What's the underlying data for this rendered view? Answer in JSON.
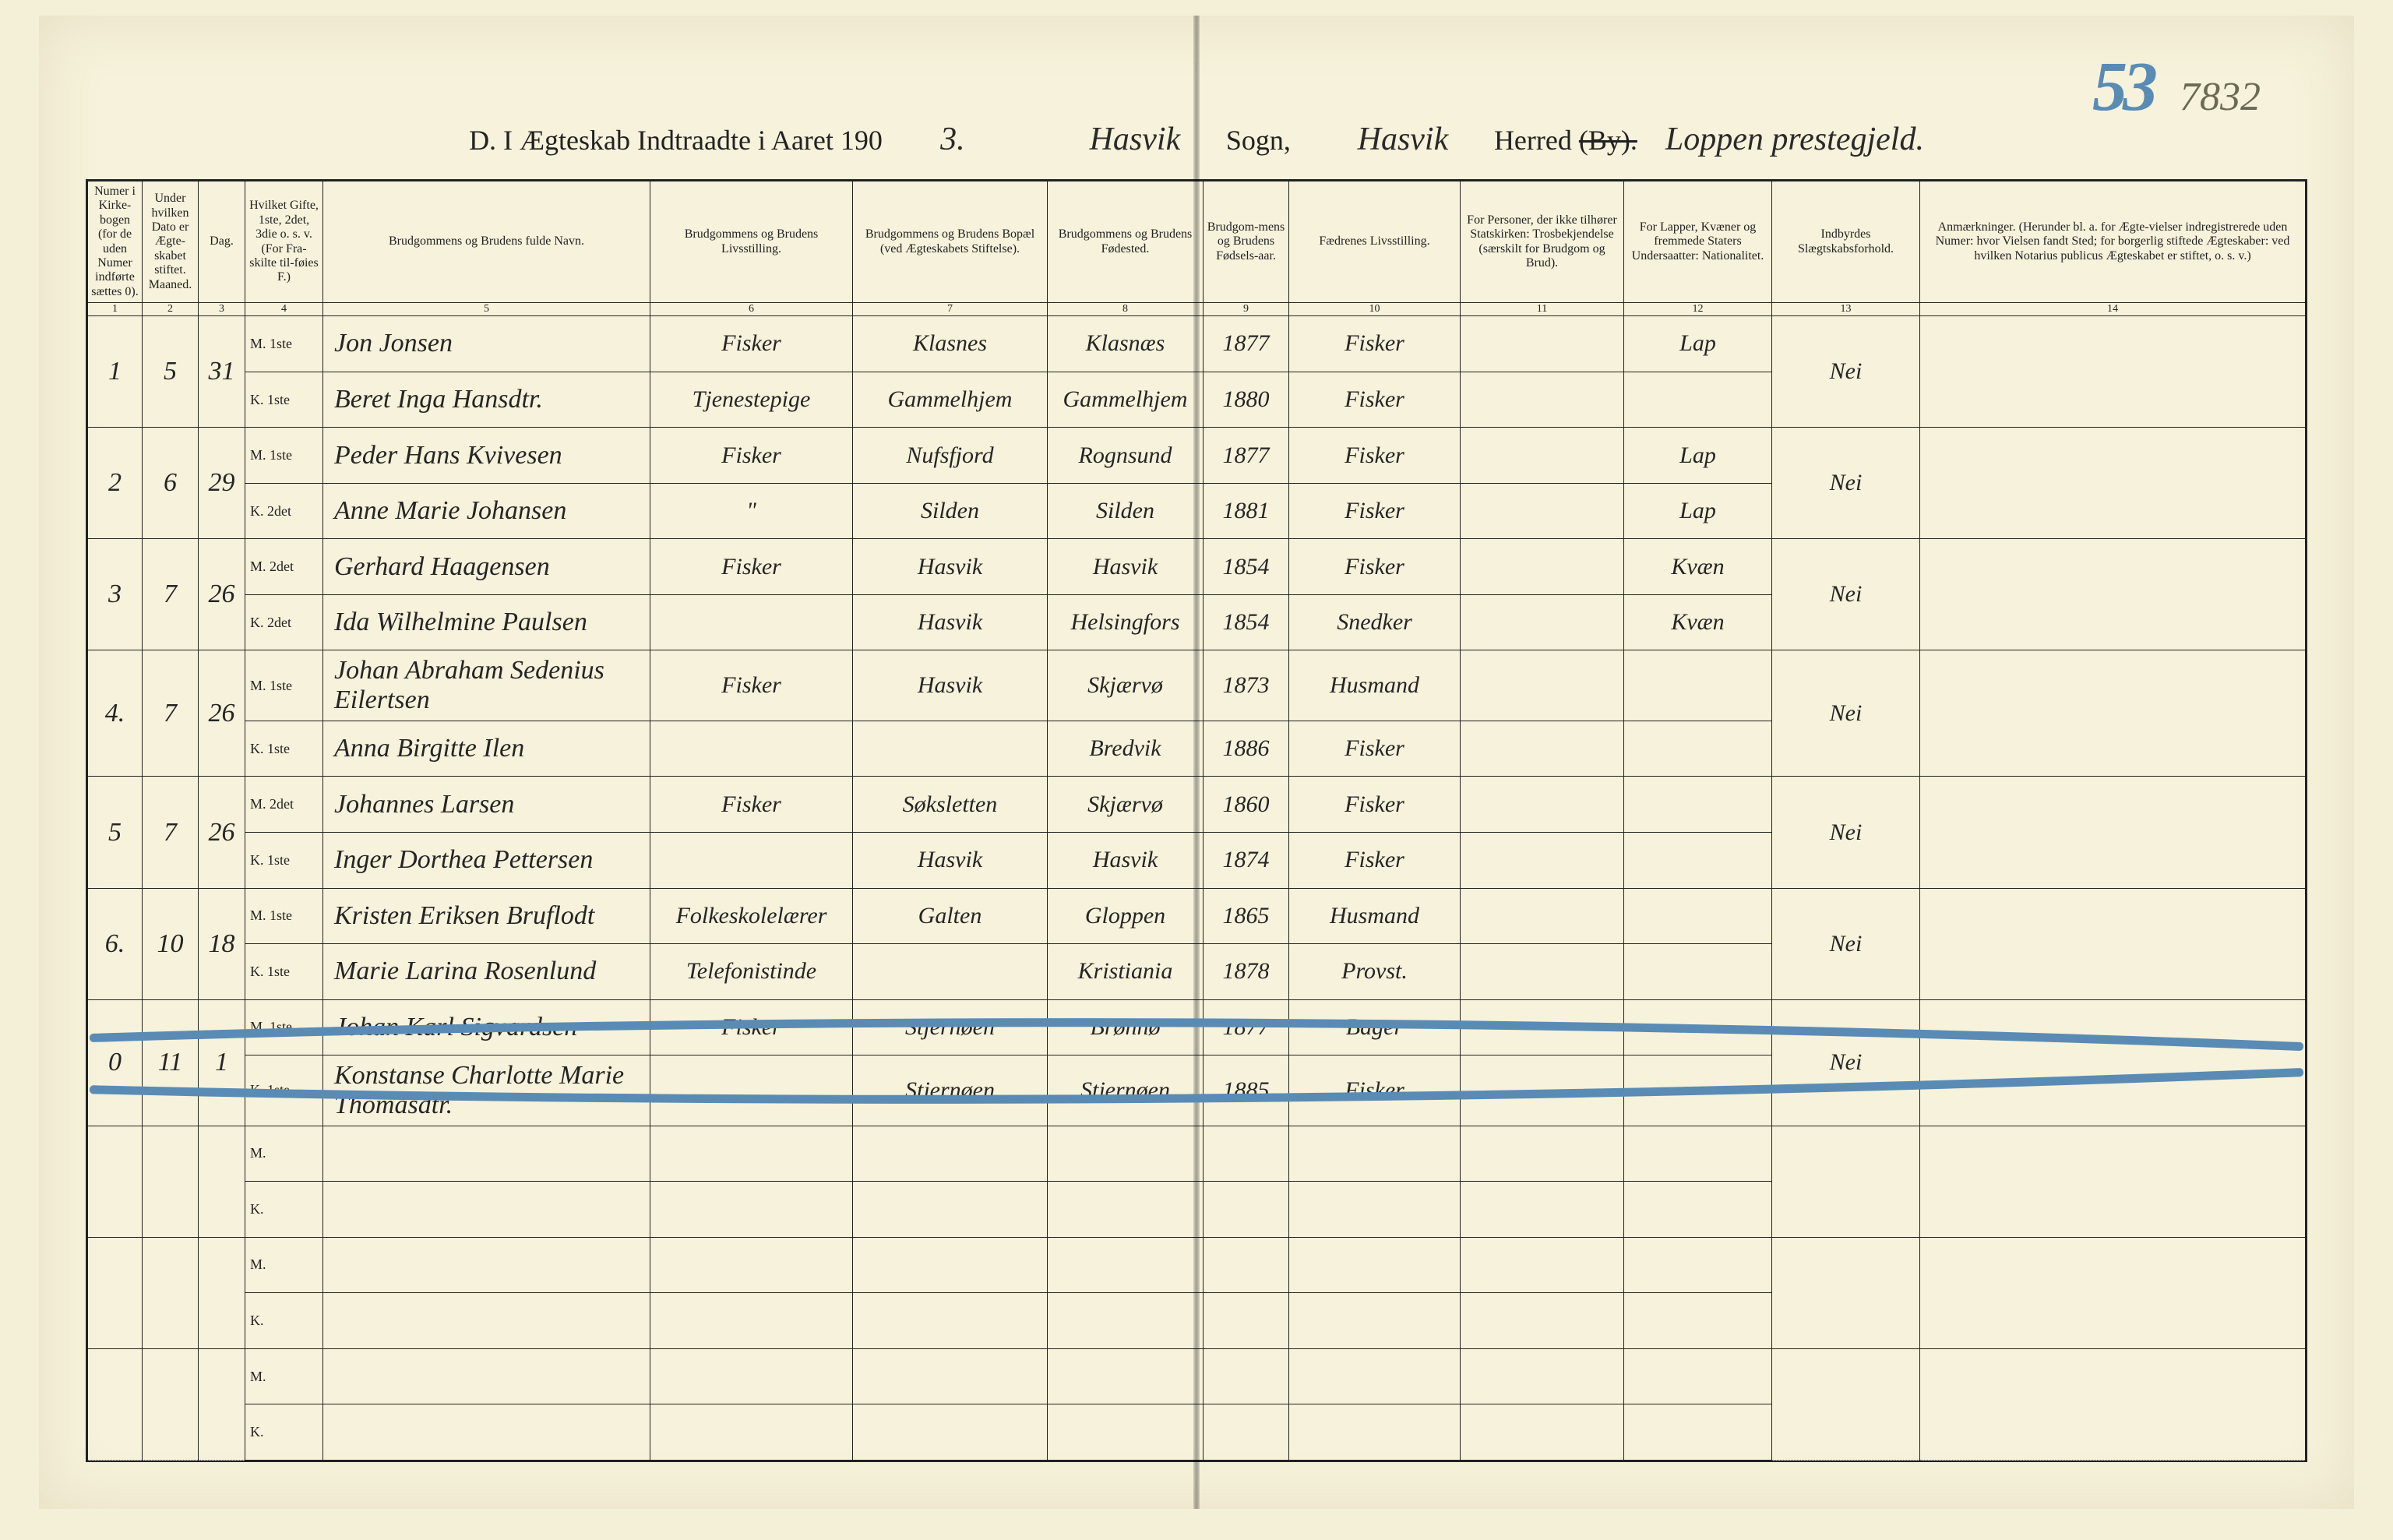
{
  "page_numbers": {
    "blue_big": "53",
    "pencil_small": "7832"
  },
  "header": {
    "printed_prefix": "D.  I Ægteskab Indtraadte i Aaret 190",
    "year_suffix_hand": "3.",
    "sogn_hand": "Hasvik",
    "sogn_label": "Sogn,",
    "herred_hand": "Hasvik",
    "herred_label_full": "Herred ",
    "herred_label_struck": "(By).",
    "prestegjeld_hand": "Loppen prestegjeld."
  },
  "columns": {
    "c1": "Numer i Kirke-bogen (for de uden Numer indførte sættes 0).",
    "c2": "Under hvilken Dato er Ægte-skabet stiftet.  Maaned.",
    "c3": "Dag.",
    "c4": "Hvilket Gifte, 1ste, 2det, 3die o. s. v. (For Fra-skilte til-føies F.)",
    "c5": "Brudgommens og Brudens fulde Navn.",
    "c6": "Brudgommens og Brudens Livsstilling.",
    "c7": "Brudgommens og Brudens Bopæl (ved Ægteskabets Stiftelse).",
    "c8": "Brudgommens og Brudens Fødested.",
    "c9": "Brudgom-mens og Brudens Fødsels-aar.",
    "c10": "Fædrenes Livsstilling.",
    "c11": "For Personer, der ikke tilhører Statskirken: Trosbekjendelse (særskilt for Brudgom og Brud).",
    "c12": "For Lapper, Kvæner og fremmede Staters Undersaatter: Nationalitet.",
    "c13": "Indbyrdes Slægtskabsforhold.",
    "c14": "Anmærkninger. (Herunder bl. a. for Ægte-vielser indregistrerede uden Numer: hvor Vielsen fandt Sted; for borgerlig stiftede Ægteskaber: ved hvilken Notarius publicus Ægteskabet er stiftet, o. s. v.)"
  },
  "col_nums": [
    "1",
    "2",
    "3",
    "4",
    "5",
    "6",
    "7",
    "8",
    "9",
    "10",
    "11",
    "12",
    "13",
    "14"
  ],
  "rows": [
    {
      "num": "1",
      "month": "5",
      "day": "31",
      "groom": {
        "mk": "M. 1ste",
        "name": "Jon Jonsen",
        "occ": "Fisker",
        "res": "Klasnes",
        "birthpl": "Klasnæs",
        "year": "1877",
        "father": "Fisker",
        "nat": "Lap"
      },
      "bride": {
        "mk": "K. 1ste",
        "name": "Beret Inga Hansdtr.",
        "occ": "Tjenestepige",
        "res": "Gammelhjem",
        "birthpl": "Gammelhjem",
        "year": "1880",
        "father": "Fisker",
        "nat": ""
      },
      "kinship": "Nei"
    },
    {
      "num": "2",
      "month": "6",
      "day": "29",
      "groom": {
        "mk": "M. 1ste",
        "name": "Peder Hans Kvivesen",
        "occ": "Fisker",
        "res": "Nufsfjord",
        "birthpl": "Rognsund",
        "year": "1877",
        "father": "Fisker",
        "nat": "Lap"
      },
      "bride": {
        "mk": "K. 2det",
        "name": "Anne Marie Johansen",
        "occ": "\"",
        "res": "Silden",
        "birthpl": "Silden",
        "year": "1881",
        "father": "Fisker",
        "nat": "Lap"
      },
      "kinship": "Nei"
    },
    {
      "num": "3",
      "month": "7",
      "day": "26",
      "groom": {
        "mk": "M. 2det",
        "name": "Gerhard Haagensen",
        "occ": "Fisker",
        "res": "Hasvik",
        "birthpl": "Hasvik",
        "year": "1854",
        "father": "Fisker",
        "nat": "Kvæn"
      },
      "bride": {
        "mk": "K. 2det",
        "name": "Ida Wilhelmine Paulsen",
        "occ": "",
        "res": "Hasvik",
        "birthpl": "Helsingfors",
        "year": "1854",
        "father": "Snedker",
        "nat": "Kvæn"
      },
      "kinship": "Nei"
    },
    {
      "num": "4.",
      "month": "7",
      "day": "26",
      "groom": {
        "mk": "M. 1ste",
        "name": "Johan Abraham Sedenius Eilertsen",
        "occ": "Fisker",
        "res": "Hasvik",
        "birthpl": "Skjærvø",
        "year": "1873",
        "father": "Husmand",
        "nat": ""
      },
      "bride": {
        "mk": "K. 1ste",
        "name": "Anna Birgitte Ilen",
        "occ": "",
        "res": "",
        "birthpl": "Bredvik",
        "year": "1886",
        "father": "Fisker",
        "nat": ""
      },
      "kinship": "Nei"
    },
    {
      "num": "5",
      "month": "7",
      "day": "26",
      "groom": {
        "mk": "M. 2det",
        "name": "Johannes Larsen",
        "occ": "Fisker",
        "res": "Søksletten",
        "birthpl": "Skjærvø",
        "year": "1860",
        "father": "Fisker",
        "nat": ""
      },
      "bride": {
        "mk": "K. 1ste",
        "name": "Inger Dorthea Pettersen",
        "occ": "",
        "res": "Hasvik",
        "birthpl": "Hasvik",
        "year": "1874",
        "father": "Fisker",
        "nat": ""
      },
      "kinship": "Nei"
    },
    {
      "num": "6.",
      "month": "10",
      "day": "18",
      "groom": {
        "mk": "M. 1ste",
        "name": "Kristen Eriksen Bruflodt",
        "occ": "Folkeskolelærer",
        "res": "Galten",
        "birthpl": "Gloppen",
        "year": "1865",
        "father": "Husmand",
        "nat": ""
      },
      "bride": {
        "mk": "K. 1ste",
        "name": "Marie Larina Rosenlund",
        "occ": "Telefonistinde",
        "res": "",
        "birthpl": "Kristiania",
        "year": "1878",
        "father": "Provst.",
        "nat": ""
      },
      "kinship": "Nei"
    },
    {
      "num": "0",
      "month": "11",
      "day": "1",
      "groom": {
        "mk": "M. 1ste",
        "name": "Johan Karl Sigvardsen",
        "occ": "Fisker",
        "res": "Stjernøen",
        "birthpl": "Brønnø",
        "year": "1877",
        "father": "Bager",
        "nat": ""
      },
      "bride": {
        "mk": "K. 1ste",
        "name": "Konstanse Charlotte Marie Thomasdtr.",
        "occ": "",
        "res": "Stjernøen",
        "birthpl": "Stjernøen",
        "year": "1885",
        "father": "Fisker",
        "nat": ""
      },
      "kinship": "Nei",
      "struck": true
    }
  ],
  "empty_pairs": 3,
  "style": {
    "paper_bg": "#f6f2db",
    "ink": "#222222",
    "hand_ink": "#252525",
    "blue_pencil": "#5a8bb5",
    "crossout_stroke": "#5a8bb5",
    "crossout_width": 10,
    "border_color": "#222222"
  }
}
